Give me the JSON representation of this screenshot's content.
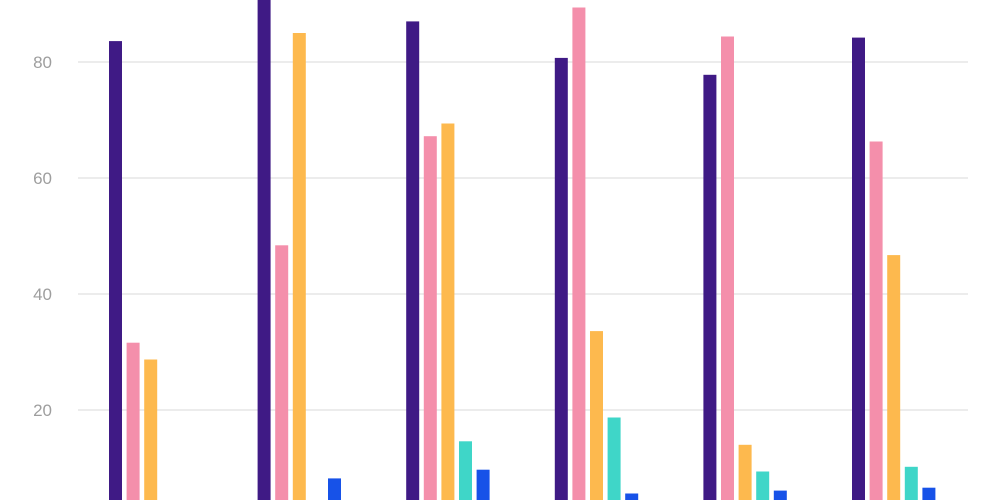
{
  "chart_data": {
    "type": "bar",
    "title": "",
    "xlabel": "",
    "ylabel": "",
    "categories": [
      "",
      "",
      "",
      "",
      "",
      ""
    ],
    "y_ticks": [
      "20",
      "40",
      "60",
      "80"
    ],
    "ylim": [
      0,
      90
    ],
    "grid": true,
    "colors": [
      "#3f1a85",
      "#f48fab",
      "#fdb94e",
      "#3fd6c8",
      "#1752e8"
    ],
    "series": [
      {
        "values": [
          83.6,
          91.0,
          87.0,
          80.7,
          77.8,
          84.2
        ]
      },
      {
        "values": [
          31.6,
          48.4,
          67.2,
          89.4,
          84.4,
          66.3
        ]
      },
      {
        "values": [
          28.7,
          85.0,
          69.4,
          33.6,
          14.0,
          46.7
        ]
      },
      {
        "values": [
          0,
          0,
          14.6,
          18.7,
          9.4,
          10.2
        ]
      },
      {
        "values": [
          0,
          8.2,
          9.7,
          5.6,
          6.1,
          6.6
        ]
      }
    ]
  }
}
